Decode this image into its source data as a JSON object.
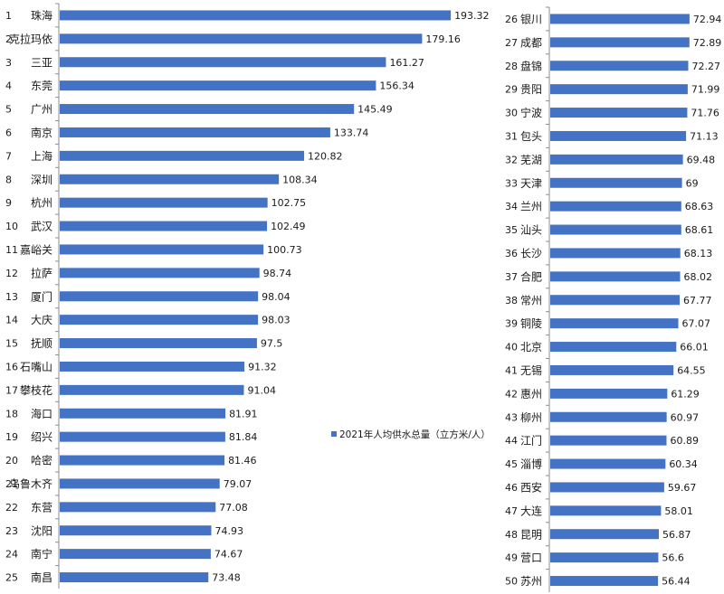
{
  "chart_data": [
    {
      "type": "bar",
      "orientation": "horizontal",
      "series": [
        {
          "name": "2021年人均供水总量（立方米/人）",
          "color": "#4472c4"
        }
      ],
      "ranks": [
        "1",
        "2",
        "3",
        "4",
        "5",
        "6",
        "7",
        "8",
        "9",
        "10",
        "11",
        "12",
        "13",
        "14",
        "15",
        "16",
        "17",
        "18",
        "19",
        "20",
        "21",
        "22",
        "23",
        "24",
        "25"
      ],
      "categories": [
        "珠海",
        "克拉玛依",
        "三亚",
        "东莞",
        "广州",
        "南京",
        "上海",
        "深圳",
        "杭州",
        "武汉",
        "嘉峪关",
        "拉萨",
        "厦门",
        "大庆",
        "抚顺",
        "石嘴山",
        "攀枝花",
        "海口",
        "绍兴",
        "哈密",
        "乌鲁木齐",
        "东营",
        "沈阳",
        "南宁",
        "南昌"
      ],
      "values": [
        193.32,
        179.16,
        161.27,
        156.34,
        145.49,
        133.74,
        120.82,
        108.34,
        102.75,
        102.49,
        100.73,
        98.74,
        98.04,
        98.03,
        97.5,
        91.32,
        91.04,
        81.91,
        81.84,
        81.46,
        79.07,
        77.08,
        74.93,
        74.67,
        73.48
      ],
      "value_labels": [
        "193.32",
        "179.16",
        "161.27",
        "156.34",
        "145.49",
        "133.74",
        "120.82",
        "108.34",
        "102.75",
        "102.49",
        "100.73",
        "98.74",
        "98.04",
        "98.03",
        "97.5",
        "91.32",
        "91.04",
        "81.91",
        "81.84",
        "81.46",
        "79.07",
        "77.08",
        "74.93",
        "74.67",
        "73.48"
      ]
    },
    {
      "type": "bar",
      "orientation": "horizontal",
      "series": [
        {
          "name": "2021年人均供水总量（立方米/人）",
          "color": "#4472c4"
        }
      ],
      "ranks": [
        "26",
        "27",
        "28",
        "29",
        "30",
        "31",
        "32",
        "33",
        "34",
        "35",
        "36",
        "37",
        "38",
        "39",
        "40",
        "41",
        "42",
        "43",
        "44",
        "45",
        "46",
        "47",
        "48",
        "49",
        "50"
      ],
      "categories": [
        "银川",
        "成都",
        "盘锦",
        "贵阳",
        "宁波",
        "包头",
        "芜湖",
        "天津",
        "兰州",
        "汕头",
        "长沙",
        "合肥",
        "常州",
        "铜陵",
        "北京",
        "无锡",
        "惠州",
        "柳州",
        "江门",
        "淄博",
        "西安",
        "大连",
        "昆明",
        "营口",
        "苏州"
      ],
      "values": [
        72.94,
        72.89,
        72.27,
        71.99,
        71.76,
        71.13,
        69.48,
        69,
        68.63,
        68.61,
        68.13,
        68.02,
        67.77,
        67.07,
        66.01,
        64.55,
        61.29,
        60.97,
        60.89,
        60.34,
        59.67,
        58.01,
        56.87,
        56.6,
        56.44
      ],
      "value_labels": [
        "72.94",
        "72.89",
        "72.27",
        "71.99",
        "71.76",
        "71.13",
        "69.48",
        "69",
        "68.63",
        "68.61",
        "68.13",
        "68.02",
        "67.77",
        "67.07",
        "66.01",
        "64.55",
        "61.29",
        "60.97",
        "60.89",
        "60.34",
        "59.67",
        "58.01",
        "56.87",
        "56.6",
        "56.44"
      ]
    }
  ],
  "legend": {
    "label": "2021年人均供水总量（立方米/人）",
    "color": "#4472c4"
  }
}
